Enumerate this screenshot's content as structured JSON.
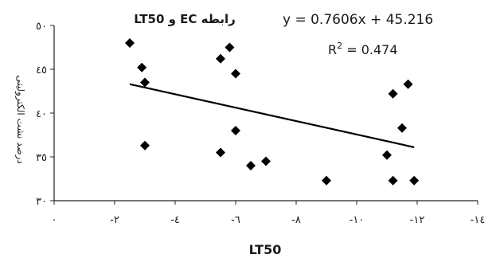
{
  "chart_data": {
    "type": "scatter",
    "title": "رابطه EC و LT50",
    "xlabel": "LT50",
    "ylabel": "درصد نشت الکترولیتی",
    "equation": "y = 0.7606x + 45.216",
    "r_squared_prefix": "R",
    "r_squared_exp": "2",
    "r_squared_value": " = 0.474",
    "xlim": [
      0,
      -14
    ],
    "ylim": [
      30,
      50
    ],
    "x_ticks": [
      0,
      -2,
      -4,
      -6,
      -8,
      -10,
      -12,
      -14
    ],
    "x_tick_labels": [
      "٠",
      "-٢",
      "-٤",
      "-٦",
      "-٨",
      "-١٠",
      "-١٢",
      "-١٤"
    ],
    "y_ticks": [
      30,
      35,
      40,
      45,
      50
    ],
    "y_tick_labels": [
      "٣٠",
      "٣٥",
      "٤٠",
      "٤٥",
      "٥٠"
    ],
    "points": [
      {
        "x": -2.5,
        "y": 48.0
      },
      {
        "x": -2.9,
        "y": 45.2
      },
      {
        "x": -3.0,
        "y": 43.5
      },
      {
        "x": -3.0,
        "y": 36.3
      },
      {
        "x": -5.5,
        "y": 46.2
      },
      {
        "x": -5.8,
        "y": 47.5
      },
      {
        "x": -6.0,
        "y": 44.5
      },
      {
        "x": -6.0,
        "y": 38.0
      },
      {
        "x": -5.5,
        "y": 35.5
      },
      {
        "x": -6.5,
        "y": 34.0
      },
      {
        "x": -7.0,
        "y": 34.5
      },
      {
        "x": -9.0,
        "y": 32.3
      },
      {
        "x": -11.0,
        "y": 35.2
      },
      {
        "x": -11.2,
        "y": 42.2
      },
      {
        "x": -11.5,
        "y": 38.3
      },
      {
        "x": -11.7,
        "y": 43.3
      },
      {
        "x": -11.2,
        "y": 32.3
      },
      {
        "x": -11.9,
        "y": 32.3
      }
    ],
    "trendline": {
      "x_start": -2.5,
      "y_start": 43.3,
      "x_end": -11.9,
      "y_end": 36.1
    },
    "marker_color": "#000000",
    "line_color": "#000000"
  }
}
